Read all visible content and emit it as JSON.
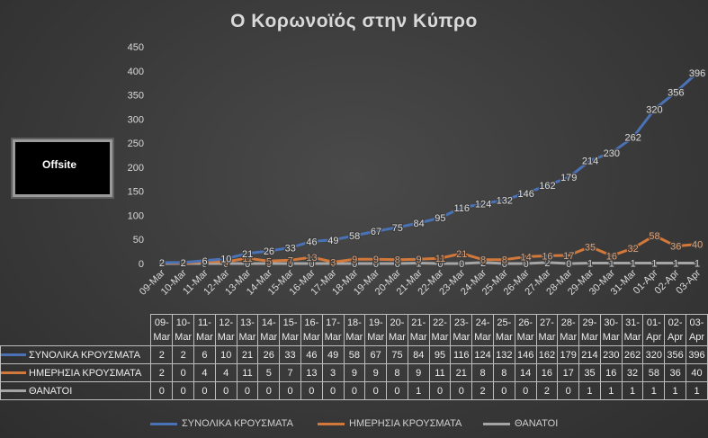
{
  "chart_data": {
    "type": "line",
    "title": "Ο Κορωνοϊός στην Κύπρο",
    "xlabel": "",
    "ylabel": "",
    "ylim": [
      0,
      450
    ],
    "yticks": [
      0,
      50,
      100,
      150,
      200,
      250,
      300,
      350,
      400,
      450
    ],
    "grid": false,
    "legend_position": "bottom",
    "categories": [
      "09-Mar",
      "10-Mar",
      "11-Mar",
      "12-Mar",
      "13-Mar",
      "14-Mar",
      "15-Mar",
      "16-Mar",
      "17-Mar",
      "18-Mar",
      "19-Mar",
      "20-Mar",
      "21-Mar",
      "22-Mar",
      "23-Mar",
      "24-Mar",
      "25-Mar",
      "26-Mar",
      "27-Mar",
      "28-Mar",
      "29-Mar",
      "30-Mar",
      "31-Mar",
      "01-Apr",
      "02-Apr",
      "03-Apr"
    ],
    "series": [
      {
        "name": "ΣΥΝΟΛΙΚΑ ΚΡΟΥΣΜΑΤΑ",
        "color": "#4a72b6",
        "values": [
          2,
          2,
          6,
          10,
          21,
          26,
          33,
          46,
          49,
          58,
          67,
          75,
          84,
          95,
          116,
          124,
          132,
          146,
          162,
          179,
          214,
          230,
          262,
          320,
          356,
          396
        ]
      },
      {
        "name": "ΗΜΕΡΗΣΙΑ ΚΡΟΥΣΜΑΤΑ",
        "color": "#d2783a",
        "values": [
          2,
          0,
          4,
          4,
          11,
          5,
          7,
          13,
          3,
          9,
          9,
          8,
          9,
          11,
          21,
          8,
          8,
          14,
          16,
          17,
          35,
          16,
          32,
          58,
          36,
          40
        ]
      },
      {
        "name": "ΘΑΝΑΤΟΙ",
        "color": "#a5a5a5",
        "values": [
          0,
          0,
          0,
          0,
          0,
          0,
          0,
          0,
          0,
          0,
          0,
          0,
          1,
          0,
          0,
          2,
          0,
          0,
          2,
          0,
          1,
          1,
          1,
          1,
          1,
          1
        ]
      }
    ]
  },
  "watermark": {
    "label": "Offsite"
  }
}
